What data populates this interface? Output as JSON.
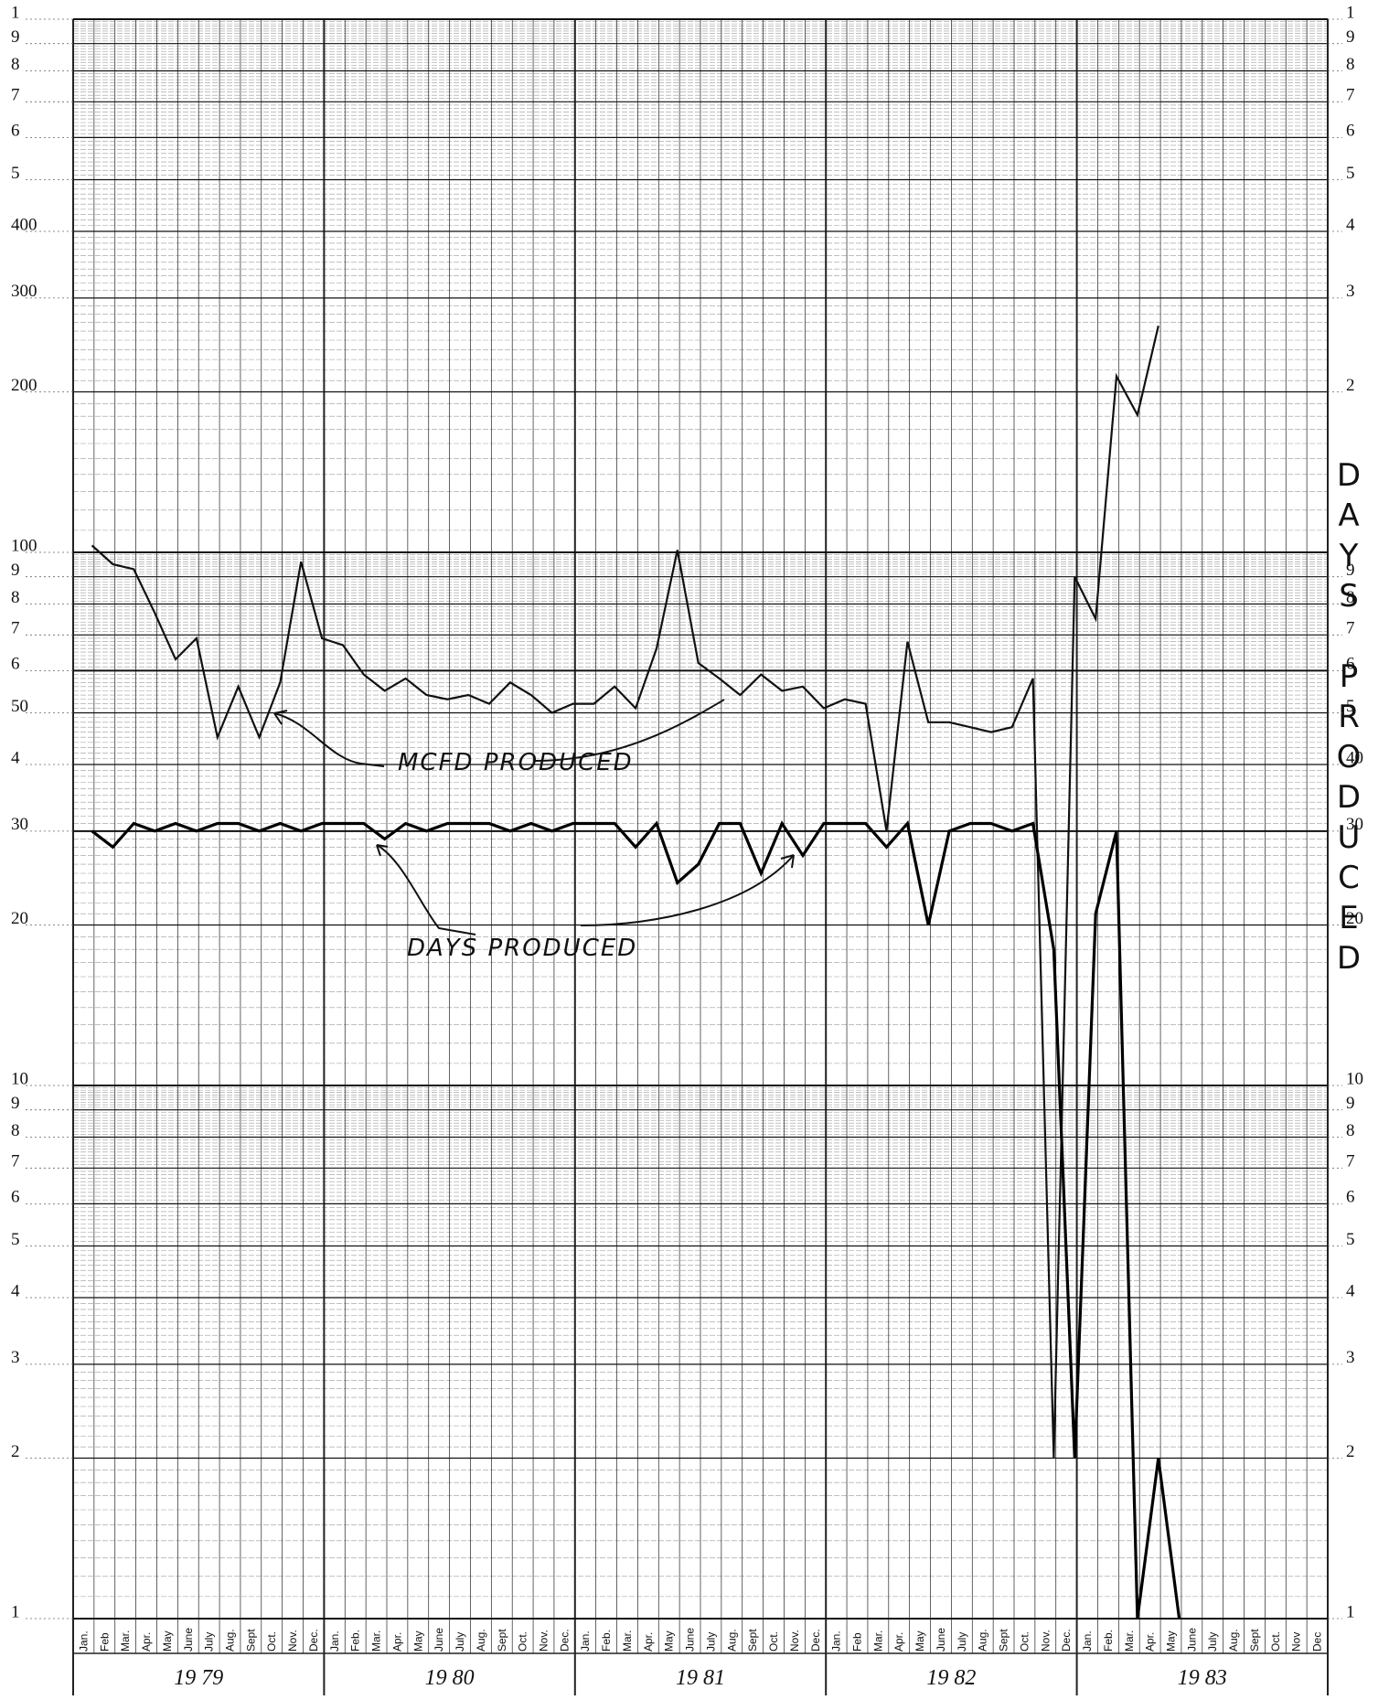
{
  "chart_data": {
    "type": "line",
    "log_scale": true,
    "grid": true,
    "ylim": [
      1,
      1000
    ],
    "yticks": [
      {
        "value": 1000,
        "label": "1"
      },
      {
        "value": 900,
        "label": "9"
      },
      {
        "value": 800,
        "label": "8"
      },
      {
        "value": 700,
        "label": "7"
      },
      {
        "value": 600,
        "label": "6"
      },
      {
        "value": 500,
        "label": "5"
      },
      400,
      300,
      200,
      100,
      {
        "value": 90,
        "label": "9"
      },
      {
        "value": 80,
        "label": "8"
      },
      {
        "value": 70,
        "label": "7"
      },
      {
        "value": 60,
        "label": "6"
      },
      50,
      {
        "value": 40,
        "label": "4"
      },
      30,
      20,
      10,
      9,
      8,
      7,
      6,
      5,
      4,
      3,
      2,
      1
    ],
    "y2lim": [
      1,
      1000
    ],
    "y2ticks": [
      {
        "value": 1000,
        "label": "1"
      },
      {
        "value": 900,
        "label": "9"
      },
      {
        "value": 800,
        "label": "8"
      },
      {
        "value": 700,
        "label": "7"
      },
      {
        "value": 600,
        "label": "6"
      },
      {
        "value": 500,
        "label": "5"
      },
      {
        "value": 400,
        "label": "4"
      },
      {
        "value": 300,
        "label": "3"
      },
      {
        "value": 200,
        "label": "2"
      },
      {
        "value": 90,
        "label": "9"
      },
      {
        "value": 80,
        "label": "8"
      },
      {
        "value": 70,
        "label": "7"
      },
      {
        "value": 60,
        "label": "6"
      },
      {
        "value": 50,
        "label": "5"
      },
      40,
      30,
      20,
      10,
      9,
      8,
      7,
      6,
      5,
      4,
      3,
      2,
      1
    ],
    "categories": [
      "Jan.",
      "Feb",
      "Mar.",
      "Apr.",
      "May",
      "June",
      "July",
      "Aug.",
      "Sept",
      "Oct.",
      "Nov.",
      "Dec.",
      "Jan.",
      "Feb.",
      "Mar.",
      "Apr.",
      "May",
      "June",
      "July",
      "Aug.",
      "Sept",
      "Oct.",
      "Nov.",
      "Dec.",
      "Jan.",
      "Feb.",
      "Mar.",
      "Apr.",
      "May",
      "June",
      "July",
      "Aug.",
      "Sept",
      "Oct.",
      "Nov.",
      "Dec.",
      "Jan.",
      "Feb",
      "Mar.",
      "Apr.",
      "May",
      "June",
      "July",
      "Aug.",
      "Sept",
      "Oct.",
      "Nov.",
      "Dec.",
      "Jan.",
      "Feb.",
      "Mar.",
      "Apr.",
      "May",
      "June",
      "July",
      "Aug.",
      "Sept",
      "Oct.",
      "Nov",
      "Dec"
    ],
    "years": [
      "19 79",
      "19 80",
      "19 81",
      "19 82",
      "19 83"
    ],
    "series": [
      {
        "name": "MCFD PRODUCED",
        "color": "#111111",
        "values": [
          103,
          95,
          93,
          77,
          63,
          69,
          45,
          56,
          45,
          57,
          96,
          69,
          67,
          59,
          55,
          58,
          54,
          53,
          54,
          52,
          57,
          54,
          50,
          52,
          52,
          56,
          51,
          66,
          101,
          62,
          58,
          54,
          59,
          55,
          56,
          51,
          53,
          52,
          30,
          68,
          48,
          48,
          47,
          46,
          47,
          58,
          2,
          90,
          75,
          214,
          181,
          266,
          null,
          null,
          null,
          null,
          null,
          null,
          null,
          null
        ]
      },
      {
        "name": "DAYS PRODUCED",
        "color": "#000000",
        "values": [
          30,
          28,
          31,
          30,
          31,
          30,
          31,
          31,
          30,
          31,
          30,
          31,
          31,
          31,
          29,
          31,
          30,
          31,
          31,
          31,
          30,
          31,
          30,
          31,
          31,
          31,
          28,
          31,
          24,
          26,
          31,
          31,
          25,
          31,
          27,
          31,
          31,
          31,
          28,
          31,
          20,
          30,
          31,
          31,
          30,
          31,
          18,
          2,
          21,
          30,
          1,
          2,
          1,
          null,
          null,
          null,
          null,
          null,
          null,
          null
        ]
      }
    ],
    "y2title": "DAYS PRODUCED"
  }
}
